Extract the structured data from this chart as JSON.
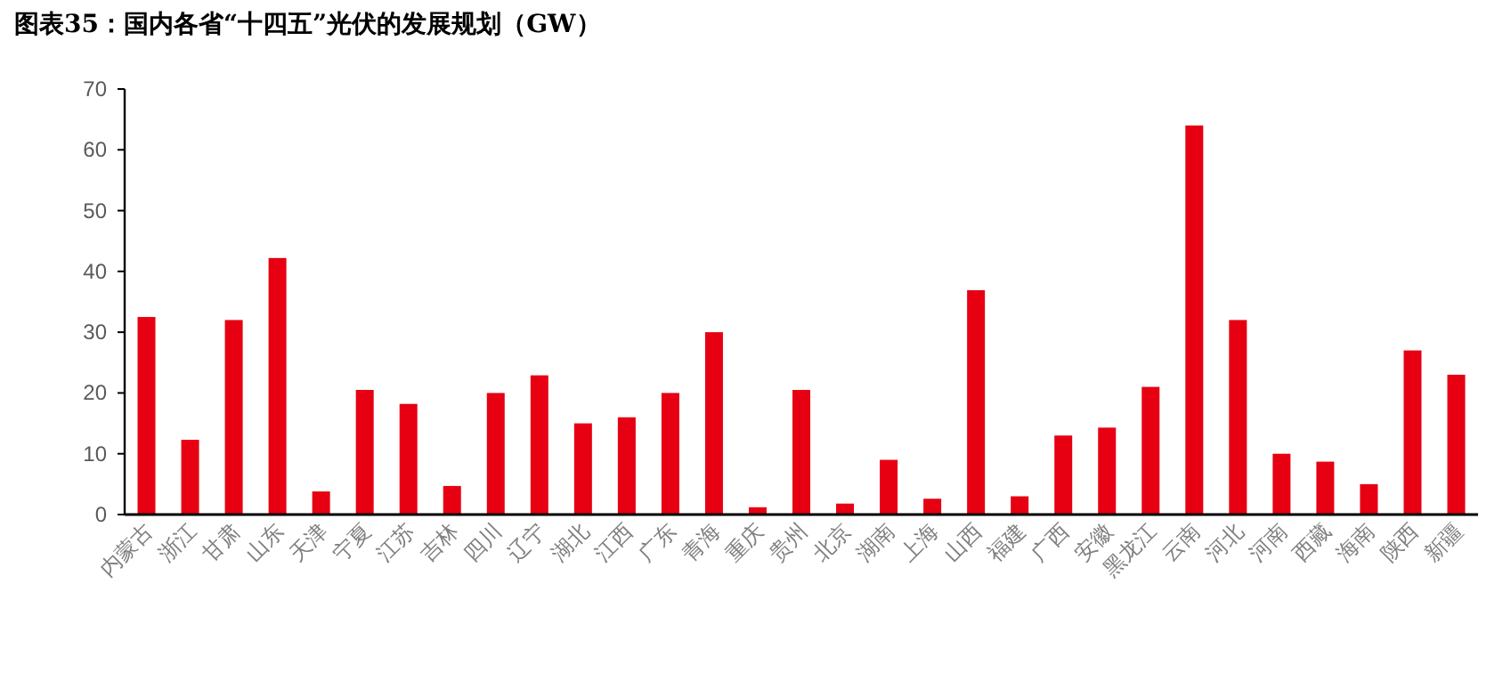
{
  "chart_data": {
    "type": "bar",
    "title": "图表35：国内各省“十四五”光伏的发展规划（GW）",
    "categories": [
      "内蒙古",
      "浙江",
      "甘肃",
      "山东",
      "天津",
      "宁夏",
      "江苏",
      "吉林",
      "四川",
      "辽宁",
      "湖北",
      "江西",
      "广东",
      "青海",
      "重庆",
      "贵州",
      "北京",
      "湖南",
      "上海",
      "山西",
      "福建",
      "广西",
      "安徽",
      "黑龙江",
      "云南",
      "河北",
      "河南",
      "西藏",
      "海南",
      "陕西",
      "新疆"
    ],
    "values": [
      32.5,
      12.3,
      32,
      42.2,
      3.8,
      20.5,
      18.2,
      4.7,
      20,
      22.9,
      15,
      16,
      20,
      30,
      1.2,
      20.5,
      1.8,
      9,
      2.6,
      36.9,
      3,
      13,
      14.3,
      21,
      64,
      32,
      10,
      8.7,
      5,
      27,
      23
    ],
    "color": "#e60012",
    "ylim": [
      0,
      70
    ],
    "yticks": [
      0,
      10,
      20,
      30,
      40,
      50,
      60,
      70
    ],
    "grid": false
  }
}
